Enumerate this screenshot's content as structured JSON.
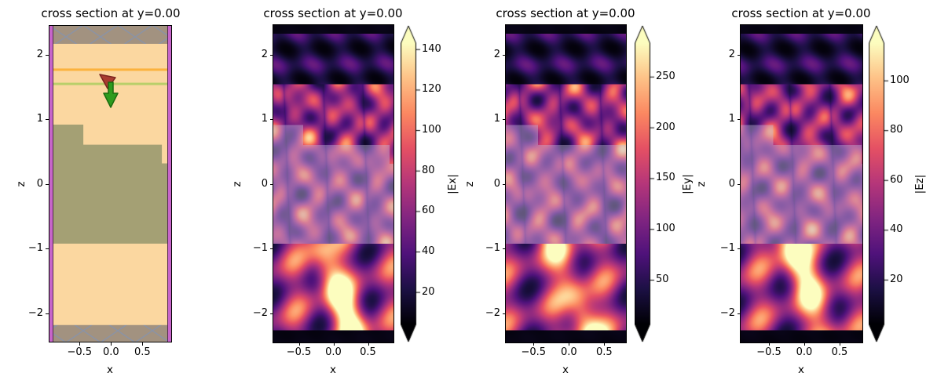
{
  "chart_data": [
    {
      "type": "cross_section_structure",
      "title": "cross section at y=0.00",
      "xlabel": "x",
      "ylabel": "z",
      "xlim": [
        -0.99,
        0.97
      ],
      "zlim": [
        -2.46,
        2.46
      ],
      "xticks": [
        -0.5,
        0.0,
        0.5
      ],
      "xticklabels": [
        "−0.5",
        "0.0",
        "0.5"
      ],
      "zticks": [
        2,
        1,
        0,
        -1,
        -2
      ],
      "zticklabels": [
        "2",
        "1",
        "0",
        "−1",
        "−2"
      ],
      "colors": {
        "background_medium": "#fbd7a0",
        "substrate": "#a4a074",
        "hatch_fill": "#a29280",
        "hatch_line": "#8a93a6",
        "boundary_strip": "#c765ca",
        "boundary_strip_edge": "#532a50",
        "interface_line": "#fbb23e",
        "source_plane": "#b9cf6a",
        "polarization_arrow": "#a83c30",
        "polarization_arrow_edge": "#7a241f",
        "direction_arrow": "#2d9b1e",
        "direction_arrow_edge": "#1b6b10"
      },
      "layers": [
        {
          "name": "absorber-region-top",
          "style": "hatched",
          "z_range": [
            2.17,
            2.46
          ]
        },
        {
          "name": "background-medium",
          "style": "fill",
          "z_range": [
            -2.18,
            2.17
          ]
        },
        {
          "name": "interface-line",
          "style": "line",
          "z": 1.77
        },
        {
          "name": "source-plane",
          "style": "line",
          "z": 1.55
        },
        {
          "name": "substrate-staircase",
          "style": "fill",
          "z_bottom": -0.92,
          "steps": [
            {
              "x_range": [
                -0.99,
                -0.44
              ],
              "z_top": 0.92
            },
            {
              "x_range": [
                -0.44,
                0.81
              ],
              "z_top": 0.61
            },
            {
              "x_range": [
                0.81,
                0.97
              ],
              "z_top": 0.32
            }
          ]
        },
        {
          "name": "absorber-region-bottom",
          "style": "hatched",
          "z_range": [
            -2.46,
            -2.18
          ]
        }
      ],
      "arrows": [
        {
          "name": "source-polarization-arrow",
          "color": "#a83c30",
          "at": [
            0.0,
            1.6
          ]
        },
        {
          "name": "source-injection-direction-arrow",
          "color": "#2d9b1e",
          "at": [
            0.0,
            1.4
          ],
          "direction": "down"
        }
      ]
    },
    {
      "type": "heatmap",
      "field": "|Ex|",
      "title": "cross section at y=0.00",
      "xlabel": "x",
      "ylabel": "z",
      "xlim": [
        -0.87,
        0.85
      ],
      "zlim": [
        -2.46,
        2.46
      ],
      "xticks": [
        -0.5,
        0.0,
        0.5
      ],
      "xticklabels": [
        "−0.5",
        "0.0",
        "0.5"
      ],
      "zticks": [
        2,
        1,
        0,
        -1,
        -2
      ],
      "zticklabels": [
        "2",
        "1",
        "0",
        "−1",
        "−2"
      ],
      "colormap": "magma",
      "colorbar": {
        "label": "|Ex|",
        "vmin": 4,
        "vmax": 143,
        "ticks": [
          20,
          40,
          60,
          80,
          100,
          120,
          140
        ],
        "extend": "both"
      },
      "bands": [
        {
          "z_range": [
            2.33,
            2.46
          ],
          "level": "near-zero"
        },
        {
          "z_range": [
            1.55,
            2.33
          ],
          "level": "low",
          "pattern": "faint-diagonal-blobs"
        },
        {
          "z_range": [
            -0.92,
            1.55
          ],
          "level": "high",
          "pattern": "dense-interference-blobs"
        },
        {
          "z_range": [
            -2.26,
            -0.92
          ],
          "level": "highest",
          "pattern": "diagonal-streaks"
        },
        {
          "z_range": [
            -2.46,
            -2.26
          ],
          "level": "near-zero"
        }
      ],
      "structure_overlay": {
        "tint": "#c3b4d8",
        "alpha": 0.44,
        "z_bottom": -0.92,
        "steps": [
          {
            "x_range": [
              -0.99,
              -0.44
            ],
            "z_top": 0.92
          },
          {
            "x_range": [
              -0.44,
              0.81
            ],
            "z_top": 0.61
          },
          {
            "x_range": [
              0.81,
              0.99
            ],
            "z_top": 0.32
          }
        ]
      },
      "seed": 0.3
    },
    {
      "type": "heatmap",
      "field": "|Ey|",
      "title": "cross section at y=0.00",
      "xlabel": "x",
      "ylabel": "z",
      "xlim": [
        -0.89,
        0.81
      ],
      "zlim": [
        -2.46,
        2.46
      ],
      "xticks": [
        -0.5,
        0.0,
        0.5
      ],
      "xticklabels": [
        "−0.5",
        "0.0",
        "0.5"
      ],
      "zticks": [
        2,
        1,
        0,
        -1,
        -2
      ],
      "zticklabels": [
        "2",
        "1",
        "0",
        "−1",
        "−2"
      ],
      "colormap": "magma",
      "colorbar": {
        "label": "|Ey|",
        "vmin": 6,
        "vmax": 283,
        "ticks": [
          50,
          100,
          150,
          200,
          250
        ],
        "extend": "both"
      },
      "bands": [
        {
          "z_range": [
            2.33,
            2.46
          ],
          "level": "near-zero"
        },
        {
          "z_range": [
            1.55,
            2.33
          ],
          "level": "low",
          "pattern": "faint-diagonal-blobs"
        },
        {
          "z_range": [
            -0.92,
            1.55
          ],
          "level": "high",
          "pattern": "dense-interference-blobs"
        },
        {
          "z_range": [
            -2.26,
            -0.92
          ],
          "level": "highest",
          "pattern": "diagonal-streaks"
        },
        {
          "z_range": [
            -2.46,
            -2.26
          ],
          "level": "near-zero"
        }
      ],
      "structure_overlay": {
        "tint": "#c3b4d8",
        "alpha": 0.44,
        "z_bottom": -0.92,
        "steps": [
          {
            "x_range": [
              -0.99,
              -0.44
            ],
            "z_top": 0.92
          },
          {
            "x_range": [
              -0.44,
              0.81
            ],
            "z_top": 0.61
          },
          {
            "x_range": [
              0.81,
              0.99
            ],
            "z_top": 0.32
          }
        ]
      },
      "seed": 2.1
    },
    {
      "type": "heatmap",
      "field": "|Ez|",
      "title": "cross section at y=0.00",
      "xlabel": "x",
      "ylabel": "z",
      "xlim": [
        -0.9,
        0.82
      ],
      "zlim": [
        -2.46,
        2.46
      ],
      "xticks": [
        -0.5,
        0.0,
        0.5
      ],
      "xticklabels": [
        "−0.5",
        "0.0",
        "0.5"
      ],
      "zticks": [
        2,
        1,
        0,
        -1,
        -2
      ],
      "zticklabels": [
        "2",
        "1",
        "0",
        "−1",
        "−2"
      ],
      "colormap": "magma",
      "colorbar": {
        "label": "|Ez|",
        "vmin": 2,
        "vmax": 115,
        "ticks": [
          20,
          40,
          60,
          80,
          100
        ],
        "extend": "both"
      },
      "bands": [
        {
          "z_range": [
            2.33,
            2.46
          ],
          "level": "near-zero"
        },
        {
          "z_range": [
            1.55,
            2.33
          ],
          "level": "low",
          "pattern": "faint-diagonal-blobs"
        },
        {
          "z_range": [
            -0.92,
            1.55
          ],
          "level": "high",
          "pattern": "dense-interference-blobs"
        },
        {
          "z_range": [
            -2.26,
            -0.92
          ],
          "level": "highest",
          "pattern": "diagonal-streaks"
        },
        {
          "z_range": [
            -2.46,
            -2.26
          ],
          "level": "near-zero"
        }
      ],
      "structure_overlay": {
        "tint": "#c3b4d8",
        "alpha": 0.44,
        "z_bottom": -0.92,
        "steps": [
          {
            "x_range": [
              -0.99,
              -0.44
            ],
            "z_top": 0.92
          },
          {
            "x_range": [
              -0.44,
              0.81
            ],
            "z_top": 0.61
          },
          {
            "x_range": [
              0.81,
              0.99
            ],
            "z_top": 0.32
          }
        ]
      },
      "seed": 4.2
    }
  ]
}
